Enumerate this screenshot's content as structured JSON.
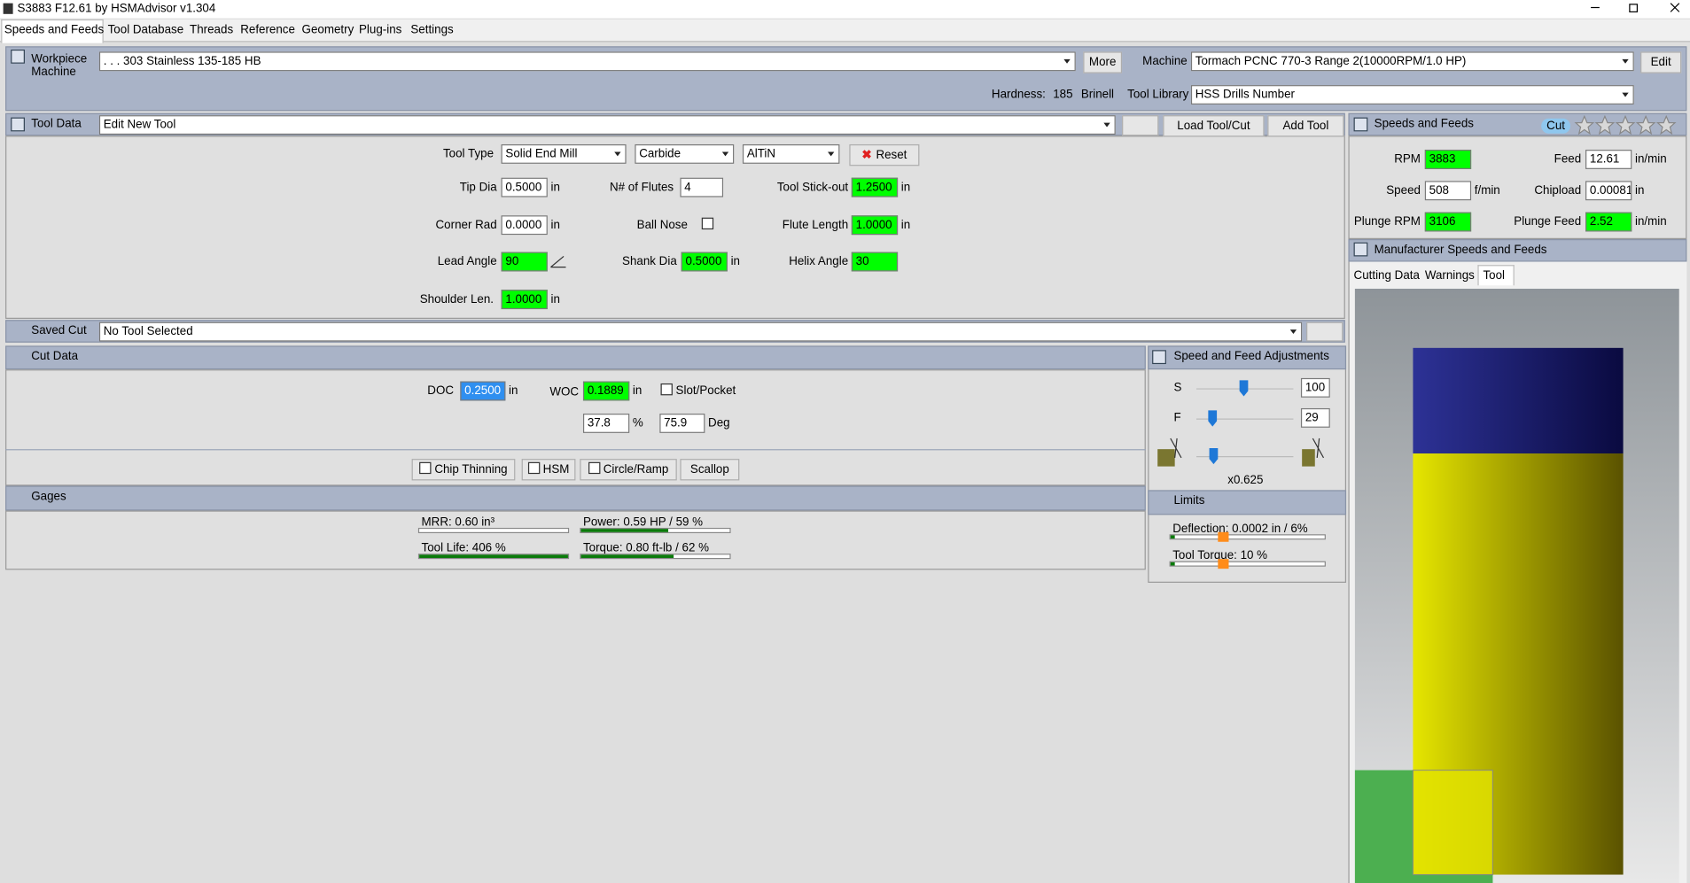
{
  "title_bar": {
    "title": "S3883 F12.61 by HSMAdvisor v1.304"
  },
  "menu": [
    "Speeds and Feeds",
    "Tool Database",
    "Threads",
    "Reference",
    "Geometry",
    "Plug-ins",
    "Settings"
  ],
  "workpiece": {
    "label": "Workpiece Machine",
    "material": ". . . 303 Stainless 135-185 HB",
    "more": "More",
    "machine_label": "Machine",
    "machine": "Tormach PCNC 770-3 Range 2(10000RPM/1.0 HP)",
    "edit": "Edit",
    "hardness_label": "Hardness:",
    "hardness": "185",
    "hardness_unit": "Brinell",
    "tool_library_label": "Tool Library",
    "tool_library": "HSS Drills Number"
  },
  "tool_data": {
    "label": "Tool Data",
    "tool": "Edit New Tool",
    "load": "Load Tool/Cut",
    "add": "Add Tool",
    "tool_type_label": "Tool Type",
    "tool_type": "Solid End Mill",
    "material": "Carbide",
    "coating": "AlTiN",
    "reset": "Reset",
    "fields": [
      {
        "label": "Tip Dia",
        "value": "0.5000",
        "unit": "in"
      },
      {
        "label": "N# of Flutes",
        "value": "4"
      },
      {
        "label": "Tool Stick-out",
        "value": "1.2500",
        "unit": "in"
      },
      {
        "label": "Corner Rad",
        "value": "0.0000",
        "unit": "in"
      },
      {
        "label": "Ball Nose"
      },
      {
        "label": "Flute Length",
        "value": "1.0000",
        "unit": "in"
      },
      {
        "label": "Lead Angle",
        "value": "90"
      },
      {
        "label": "Shank Dia",
        "value": "0.5000",
        "unit": "in"
      },
      {
        "label": "Helix Angle",
        "value": "30"
      },
      {
        "label": "Shoulder Len.",
        "value": "1.0000",
        "unit": "in"
      }
    ]
  },
  "saved_cut": {
    "label": "Saved Cut",
    "value": "No Tool Selected"
  },
  "cut_data": {
    "label": "Cut Data",
    "doc_label": "DOC",
    "doc": "0.2500",
    "doc_unit": "in",
    "woc_label": "WOC",
    "woc": "0.1889",
    "woc_unit": "in",
    "slot": "Slot/Pocket",
    "woc_percent": "37.8",
    "percent_unit": "%",
    "angle": "75.9",
    "angle_unit": "Deg",
    "options": [
      "Chip Thinning",
      "HSM",
      "Circle/Ramp",
      "Scallop"
    ]
  },
  "gages": {
    "label": "Gages",
    "items": [
      {
        "label": "MRR: 0.60 in³",
        "fill": 0
      },
      {
        "label": "Power: 0.59 HP / 59 %",
        "fill": 59
      },
      {
        "label": "Tool Life: 406 %",
        "fill": 100
      },
      {
        "label": "Torque: 0.80 ft-lb / 62 %",
        "fill": 62
      }
    ]
  },
  "adjustments": {
    "title": "Speed and Feed Adjustments",
    "s_label": "S",
    "s_value": "100",
    "f_label": "F",
    "f_value": "29",
    "factor": "x0.625"
  },
  "limits": {
    "label": "Limits",
    "items": [
      {
        "label": "Deflection: 0.0002 in / 6%",
        "fill": 3
      },
      {
        "label": "Tool Torque: 10 %",
        "fill": 3
      }
    ]
  },
  "speeds_feeds": {
    "title": "Speeds and Feeds",
    "badge": "Cut",
    "rows": [
      {
        "label": "RPM",
        "value": "3883"
      },
      {
        "label": "Feed",
        "value": "12.61",
        "unit": "in/min"
      },
      {
        "label": "Speed",
        "value": "508",
        "unit": "f/min"
      },
      {
        "label": "Chipload",
        "value": "0.00081",
        "unit": "in"
      },
      {
        "label": "Plunge RPM",
        "value": "3106"
      },
      {
        "label": "Plunge Feed",
        "value": "2.52",
        "unit": "in/min"
      }
    ],
    "manufacturer": "Manufacturer Speeds and Feeds",
    "tabs": [
      "Cutting Data",
      "Warnings",
      "Tool"
    ]
  }
}
